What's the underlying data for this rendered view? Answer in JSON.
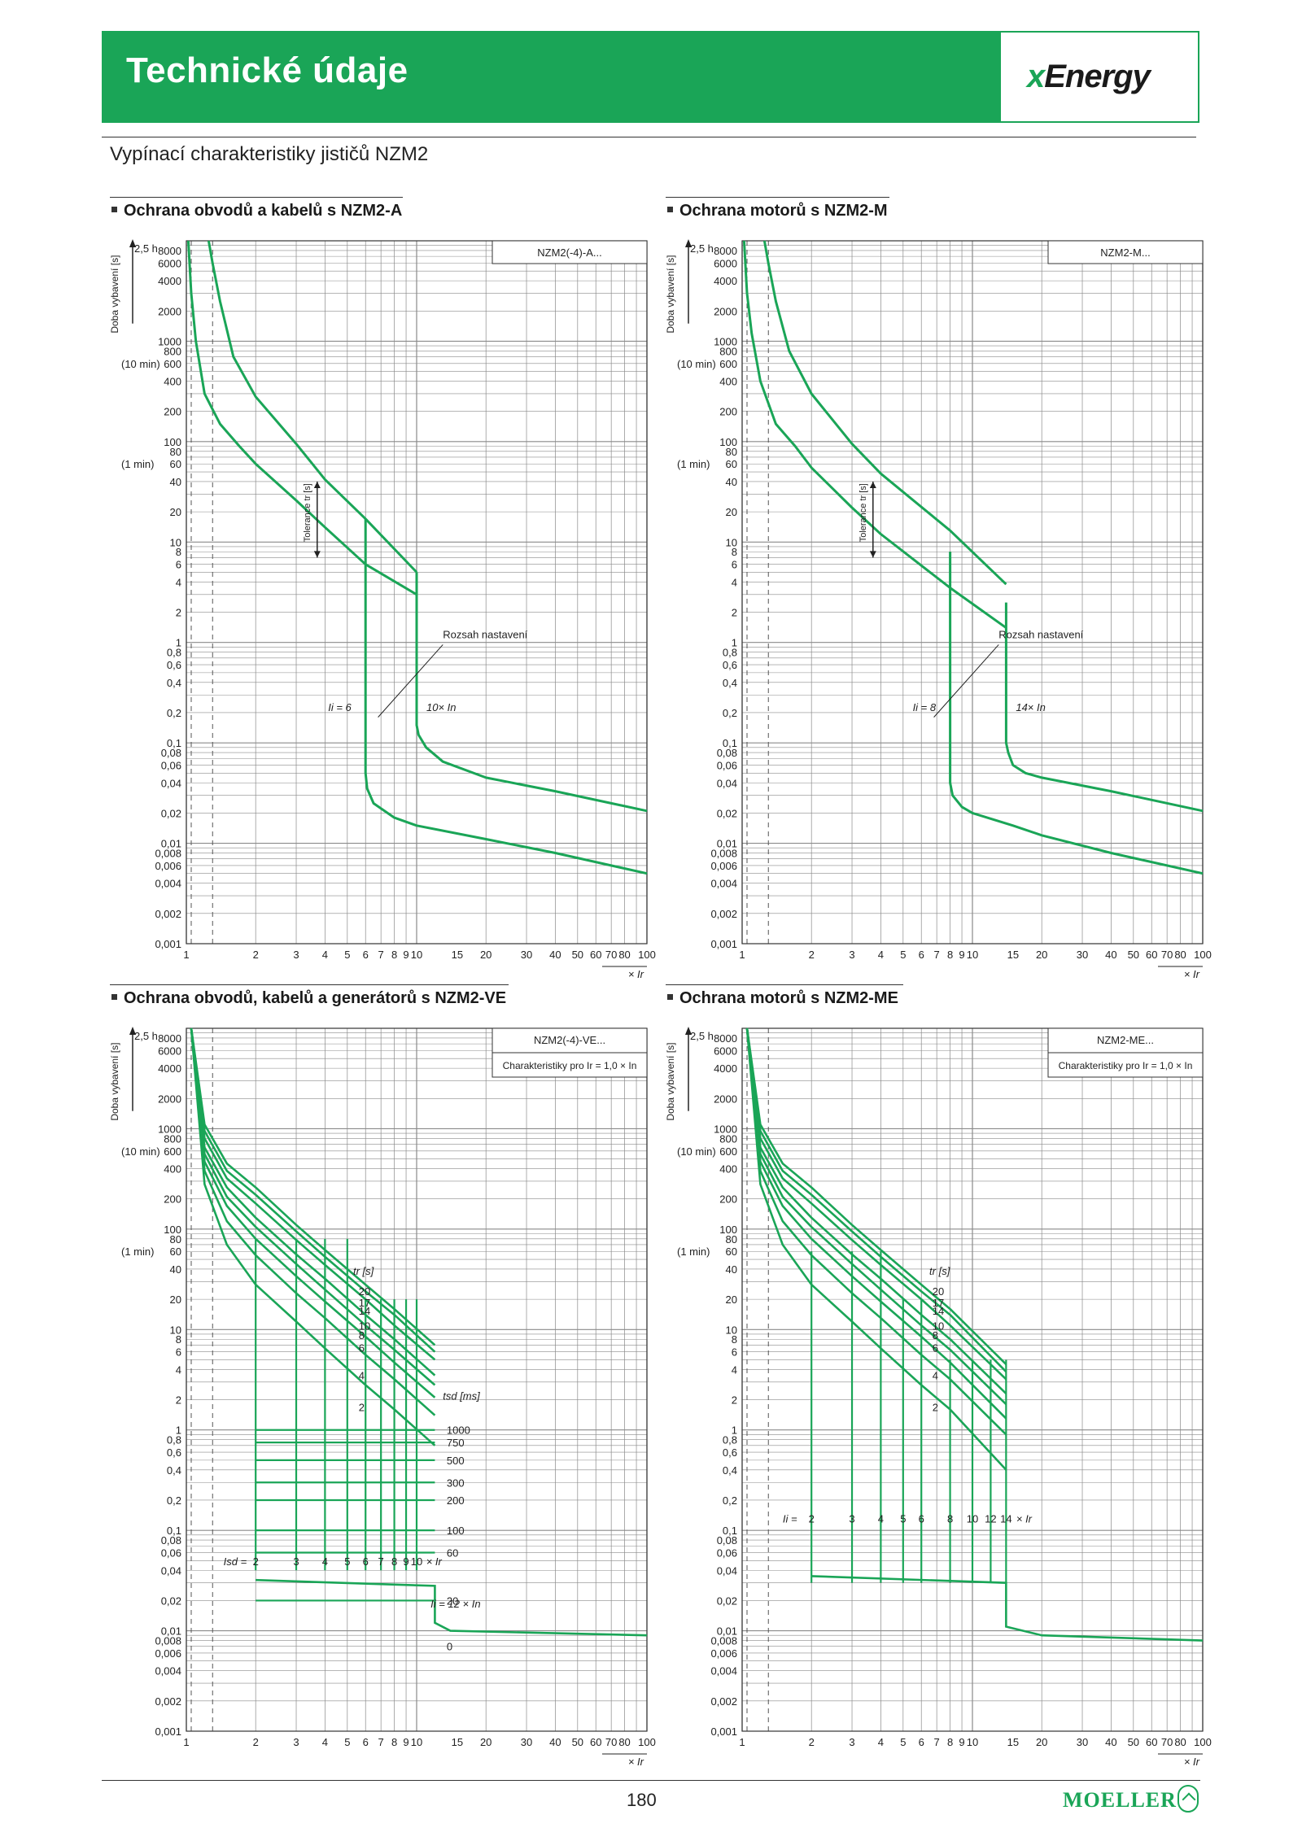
{
  "header": {
    "title": "Technické údaje",
    "logo": "xEnergy",
    "logo_x": "x",
    "logo_rest": "Energy"
  },
  "subtitle": "Vypínací charakteristiky jističů NZM2",
  "footer": {
    "page": "180",
    "brand": "MOELLER"
  },
  "common": {
    "ylabel": "Doba vybavení [s]",
    "xlabel": "× Ir",
    "y_extra": [
      "2,5 h",
      "(10 min)",
      "(1 min)"
    ],
    "y_ticks": [
      {
        "v": 8000,
        "t": "8000"
      },
      {
        "v": 6000,
        "t": "6000"
      },
      {
        "v": 4000,
        "t": "4000"
      },
      {
        "v": 2000,
        "t": "2000"
      },
      {
        "v": 1000,
        "t": "1000"
      },
      {
        "v": 800,
        "t": "800"
      },
      {
        "v": 600,
        "t": "600"
      },
      {
        "v": 400,
        "t": "400"
      },
      {
        "v": 200,
        "t": "200"
      },
      {
        "v": 100,
        "t": "100"
      },
      {
        "v": 80,
        "t": "80"
      },
      {
        "v": 60,
        "t": "60"
      },
      {
        "v": 40,
        "t": "40"
      },
      {
        "v": 20,
        "t": "20"
      },
      {
        "v": 10,
        "t": "10"
      },
      {
        "v": 8,
        "t": "8"
      },
      {
        "v": 6,
        "t": "6"
      },
      {
        "v": 4,
        "t": "4"
      },
      {
        "v": 2,
        "t": "2"
      },
      {
        "v": 1,
        "t": "1"
      },
      {
        "v": 0.8,
        "t": "0,8"
      },
      {
        "v": 0.6,
        "t": "0,6"
      },
      {
        "v": 0.4,
        "t": "0,4"
      },
      {
        "v": 0.2,
        "t": "0,2"
      },
      {
        "v": 0.1,
        "t": "0,1"
      },
      {
        "v": 0.08,
        "t": "0,08"
      },
      {
        "v": 0.06,
        "t": "0,06"
      },
      {
        "v": 0.04,
        "t": "0,04"
      },
      {
        "v": 0.02,
        "t": "0,02"
      },
      {
        "v": 0.01,
        "t": "0,01"
      },
      {
        "v": 0.008,
        "t": "0,008"
      },
      {
        "v": 0.006,
        "t": "0,006"
      },
      {
        "v": 0.004,
        "t": "0,004"
      },
      {
        "v": 0.002,
        "t": "0,002"
      },
      {
        "v": 0.001,
        "t": "0,001"
      }
    ],
    "x_ticks": [
      1,
      2,
      3,
      4,
      5,
      6,
      7,
      8,
      9,
      10,
      15,
      20,
      30,
      40,
      50,
      60,
      70,
      80,
      100
    ]
  },
  "chart_data": [
    {
      "type": "line",
      "section_title": "Ochrana obvodů a kabelů s NZM2-A",
      "box_label": "NZM2(-4)-A...",
      "box_label2": "",
      "annotations": [
        "Tolerance tr [s]",
        "Rozsah nastavení",
        "Ii = 6",
        "10× In"
      ],
      "xlim": [
        1,
        100
      ],
      "ylim": [
        0.001,
        10000
      ],
      "xscale": "log",
      "yscale": "log",
      "series": [
        {
          "x": [
            1.02,
            1.05,
            1.1,
            1.2,
            1.4,
            1.7,
            2,
            3,
            4,
            6,
            10
          ],
          "y": [
            10000,
            3000,
            1000,
            300,
            150,
            90,
            60,
            26,
            14,
            6,
            3
          ]
        },
        {
          "x": [
            1.25,
            1.3,
            1.4,
            1.6,
            2,
            3,
            4,
            6,
            10
          ],
          "y": [
            10000,
            6000,
            2500,
            700,
            280,
            95,
            42,
            17,
            5
          ]
        },
        {
          "x": [
            6,
            6,
            6.1,
            6.5,
            8,
            10,
            20,
            40,
            100
          ],
          "y": [
            17,
            0.05,
            0.035,
            0.025,
            0.018,
            0.015,
            0.011,
            0.008,
            0.005
          ]
        },
        {
          "x": [
            10,
            10,
            10.2,
            11,
            13,
            20,
            40,
            100
          ],
          "y": [
            5,
            0.15,
            0.12,
            0.09,
            0.065,
            0.045,
            0.033,
            0.021
          ]
        }
      ]
    },
    {
      "type": "line",
      "section_title": "Ochrana motorů s NZM2-M",
      "box_label": "NZM2-M...",
      "box_label2": "",
      "annotations": [
        "Tolerance tr [s]",
        "Rozsah nastavení",
        "Ii = 8",
        "14× In"
      ],
      "xlim": [
        1,
        100
      ],
      "ylim": [
        0.001,
        10000
      ],
      "xscale": "log",
      "yscale": "log",
      "series": [
        {
          "x": [
            1.02,
            1.05,
            1.1,
            1.2,
            1.4,
            1.7,
            2,
            3,
            4,
            8,
            14
          ],
          "y": [
            10000,
            3000,
            1200,
            400,
            150,
            90,
            55,
            22,
            12,
            3.5,
            1.4
          ]
        },
        {
          "x": [
            1.25,
            1.3,
            1.4,
            1.6,
            2,
            3,
            4,
            8,
            14
          ],
          "y": [
            10000,
            6000,
            2500,
            800,
            300,
            95,
            48,
            13,
            3.8
          ]
        },
        {
          "x": [
            8,
            8,
            8.2,
            9,
            10,
            15,
            20,
            40,
            100
          ],
          "y": [
            8,
            0.04,
            0.03,
            0.023,
            0.02,
            0.015,
            0.012,
            0.008,
            0.005
          ]
        },
        {
          "x": [
            14,
            14,
            14.3,
            15,
            17,
            20,
            40,
            100
          ],
          "y": [
            2.5,
            0.1,
            0.08,
            0.06,
            0.05,
            0.045,
            0.033,
            0.021
          ]
        }
      ]
    },
    {
      "type": "line",
      "section_title": "Ochrana obvodů, kabelů a generátorů s NZM2-VE",
      "box_label": "NZM2(-4)-VE...",
      "box_label2": "Charakteristiky pro Ir = 1,0 × In",
      "annotations": [
        "tr [s]",
        "tsd [ms]",
        "Isd =",
        "× Ir",
        "Ii = 12 × In"
      ],
      "tr_labels": [
        "20",
        "17",
        "14",
        "10",
        "8",
        "6",
        "4",
        "2"
      ],
      "tsd_labels": [
        "1000",
        "750",
        "500",
        "300",
        "200",
        "100",
        "60",
        "20",
        "0"
      ],
      "isd_labels": [
        "2",
        "3",
        "4",
        "5",
        "6",
        "7",
        "8",
        "9",
        "10"
      ],
      "xlim": [
        1,
        100
      ],
      "ylim": [
        0.001,
        10000
      ],
      "xscale": "log",
      "yscale": "log",
      "series": [
        {
          "name": "20",
          "x": [
            1.05,
            1.2,
            1.5,
            2,
            3,
            4,
            6,
            8,
            12
          ],
          "y": [
            10000,
            1100,
            450,
            260,
            110,
            62,
            28,
            16,
            7
          ]
        },
        {
          "name": "17",
          "x": [
            1.05,
            1.2,
            1.5,
            2,
            3,
            4,
            6,
            8,
            12
          ],
          "y": [
            10000,
            950,
            380,
            220,
            95,
            53,
            24,
            14,
            6
          ]
        },
        {
          "name": "14",
          "x": [
            1.05,
            1.2,
            1.5,
            2,
            3,
            4,
            6,
            8,
            12
          ],
          "y": [
            10000,
            800,
            320,
            180,
            78,
            44,
            20,
            11,
            5
          ]
        },
        {
          "name": "10",
          "x": [
            1.05,
            1.2,
            1.5,
            2,
            3,
            4,
            6,
            8,
            12
          ],
          "y": [
            10000,
            650,
            260,
            130,
            56,
            32,
            14,
            8,
            3.5
          ]
        },
        {
          "name": "8",
          "x": [
            1.05,
            1.2,
            1.5,
            2,
            3,
            4,
            6,
            8,
            12
          ],
          "y": [
            10000,
            560,
            210,
            105,
            45,
            25,
            11,
            6.3,
            2.8
          ]
        },
        {
          "name": "6",
          "x": [
            1.05,
            1.2,
            1.5,
            2,
            3,
            4,
            6,
            8,
            12
          ],
          "y": [
            10000,
            470,
            170,
            80,
            34,
            19,
            8.5,
            4.7,
            2.1
          ]
        },
        {
          "name": "4",
          "x": [
            1.05,
            1.2,
            1.5,
            2,
            3,
            4,
            6,
            8,
            12
          ],
          "y": [
            10000,
            380,
            120,
            55,
            23,
            13,
            5.6,
            3.2,
            1.4
          ]
        },
        {
          "name": "2",
          "x": [
            1.05,
            1.2,
            1.5,
            2,
            3,
            4,
            6,
            8,
            12
          ],
          "y": [
            10000,
            280,
            70,
            28,
            12,
            6.5,
            2.8,
            1.6,
            0.7
          ]
        }
      ]
    },
    {
      "type": "line",
      "section_title": "Ochrana motorů s NZM2-ME",
      "box_label": "NZM2-ME...",
      "box_label2": "Charakteristiky pro Ir = 1,0 × In",
      "annotations": [
        "tr [s]",
        "Ii =",
        "× Ir"
      ],
      "tr_labels": [
        "20",
        "17",
        "14",
        "10",
        "8",
        "6",
        "4",
        "2"
      ],
      "ii_labels": [
        "2",
        "3",
        "4",
        "5",
        "6",
        "8",
        "10",
        "12",
        "14"
      ],
      "xlim": [
        1,
        100
      ],
      "ylim": [
        0.001,
        10000
      ],
      "xscale": "log",
      "yscale": "log",
      "series": [
        {
          "name": "20",
          "x": [
            1.05,
            1.2,
            1.5,
            2,
            3,
            4,
            6,
            8,
            14
          ],
          "y": [
            10000,
            1100,
            450,
            260,
            110,
            62,
            28,
            16,
            4.5
          ]
        },
        {
          "name": "17",
          "x": [
            1.05,
            1.2,
            1.5,
            2,
            3,
            4,
            6,
            8,
            14
          ],
          "y": [
            10000,
            950,
            380,
            220,
            95,
            53,
            24,
            14,
            3.8
          ]
        },
        {
          "name": "14",
          "x": [
            1.05,
            1.2,
            1.5,
            2,
            3,
            4,
            6,
            8,
            14
          ],
          "y": [
            10000,
            800,
            320,
            180,
            78,
            44,
            20,
            11,
            3.2
          ]
        },
        {
          "name": "10",
          "x": [
            1.05,
            1.2,
            1.5,
            2,
            3,
            4,
            6,
            8,
            14
          ],
          "y": [
            10000,
            650,
            260,
            130,
            56,
            32,
            14,
            8,
            2.3
          ]
        },
        {
          "name": "8",
          "x": [
            1.05,
            1.2,
            1.5,
            2,
            3,
            4,
            6,
            8,
            14
          ],
          "y": [
            10000,
            560,
            210,
            105,
            45,
            25,
            11,
            6.3,
            1.8
          ]
        },
        {
          "name": "6",
          "x": [
            1.05,
            1.2,
            1.5,
            2,
            3,
            4,
            6,
            8,
            14
          ],
          "y": [
            10000,
            470,
            170,
            80,
            34,
            19,
            8.5,
            4.7,
            1.3
          ]
        },
        {
          "name": "4",
          "x": [
            1.05,
            1.2,
            1.5,
            2,
            3,
            4,
            6,
            8,
            14
          ],
          "y": [
            10000,
            380,
            120,
            55,
            23,
            13,
            5.6,
            3.2,
            0.9
          ]
        },
        {
          "name": "2",
          "x": [
            1.05,
            1.2,
            1.5,
            2,
            3,
            4,
            6,
            8,
            14
          ],
          "y": [
            10000,
            280,
            70,
            28,
            12,
            6.5,
            2.8,
            1.6,
            0.4
          ]
        }
      ]
    }
  ],
  "colors": {
    "curve": "#1aa557",
    "grid": "#8a8a8a",
    "frame": "#333333"
  }
}
